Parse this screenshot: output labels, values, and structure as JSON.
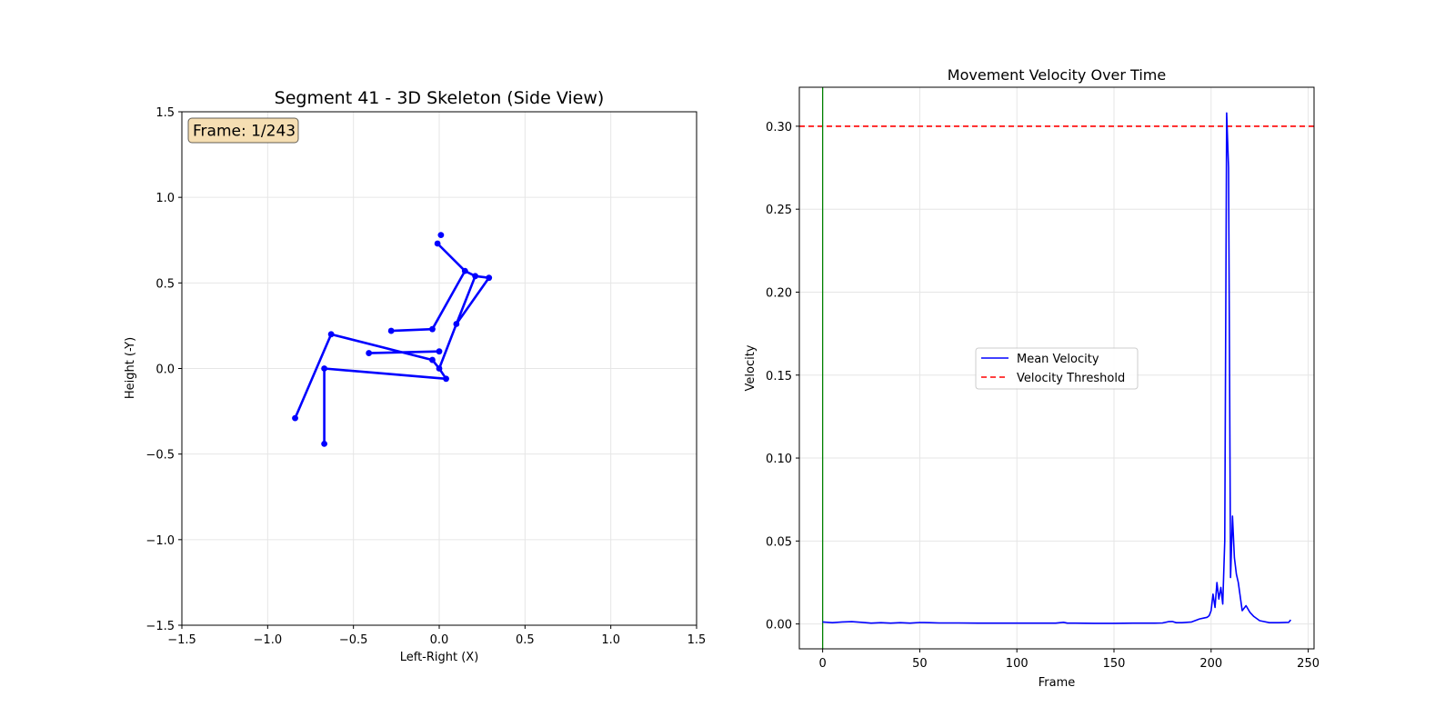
{
  "figure": {
    "left": {
      "title": "Segment 41 - 3D Skeleton (Side View)",
      "xlabel": "Left-Right (X)",
      "ylabel": "Height (-Y)",
      "frame_label": "Frame: 1/243"
    },
    "right": {
      "title": "Movement Velocity Over Time",
      "xlabel": "Frame",
      "ylabel": "Velocity"
    },
    "colors": {
      "skeleton": "#0000ff",
      "velocity": "#0000ff",
      "threshold": "#ff0000",
      "current_frame": "#008000",
      "frame_box_fill": "#f5deb3",
      "grid": "#e6e6e6"
    }
  },
  "chart_data": [
    {
      "type": "scatter",
      "title": "Segment 41 - 3D Skeleton (Side View)",
      "xlabel": "Left-Right (X)",
      "ylabel": "Height (-Y)",
      "xlim": [
        -1.5,
        1.5
      ],
      "ylim": [
        -1.5,
        1.5
      ],
      "xticks": [
        -1.5,
        -1.0,
        -0.5,
        0.0,
        0.5,
        1.0,
        1.5
      ],
      "yticks": [
        -1.5,
        -1.0,
        -0.5,
        0.0,
        0.5,
        1.0,
        1.5
      ],
      "xtick_labels": [
        "−1.5",
        "−1.0",
        "−0.5",
        "0.0",
        "0.5",
        "1.0",
        "1.5"
      ],
      "ytick_labels": [
        "−1.5",
        "−1.0",
        "−0.5",
        "0.0",
        "0.5",
        "1.0",
        "1.5"
      ],
      "grid": true,
      "annotation": "Frame: 1/243",
      "joints": [
        [
          -0.01,
          0.73
        ],
        [
          0.01,
          0.78
        ],
        [
          0.15,
          0.57
        ],
        [
          0.21,
          0.54
        ],
        [
          0.29,
          0.53
        ],
        [
          0.1,
          0.26
        ],
        [
          -0.04,
          0.23
        ],
        [
          -0.28,
          0.22
        ],
        [
          0.0,
          0.1
        ],
        [
          -0.41,
          0.09
        ],
        [
          -0.63,
          0.2
        ],
        [
          -0.84,
          -0.29
        ],
        [
          -0.04,
          0.05
        ],
        [
          0.0,
          0.0
        ],
        [
          -0.67,
          0.0
        ],
        [
          -0.67,
          -0.44
        ],
        [
          0.04,
          -0.06
        ]
      ],
      "bones": [
        [
          0,
          2
        ],
        [
          2,
          3
        ],
        [
          3,
          4
        ],
        [
          2,
          6
        ],
        [
          6,
          7
        ],
        [
          3,
          5
        ],
        [
          4,
          5
        ],
        [
          5,
          13
        ],
        [
          8,
          9
        ],
        [
          10,
          12
        ],
        [
          10,
          11
        ],
        [
          12,
          13
        ],
        [
          13,
          16
        ],
        [
          14,
          16
        ],
        [
          14,
          15
        ]
      ]
    },
    {
      "type": "line",
      "title": "Movement Velocity Over Time",
      "xlabel": "Frame",
      "ylabel": "Velocity",
      "xlim": [
        -12,
        253
      ],
      "ylim": [
        -0.015,
        0.3235
      ],
      "xticks": [
        0,
        50,
        100,
        150,
        200,
        250
      ],
      "yticks": [
        0.0,
        0.05,
        0.1,
        0.15,
        0.2,
        0.25,
        0.3
      ],
      "xtick_labels": [
        "0",
        "50",
        "100",
        "150",
        "200",
        "250"
      ],
      "ytick_labels": [
        "0.00",
        "0.05",
        "0.10",
        "0.15",
        "0.20",
        "0.25",
        "0.30"
      ],
      "grid": true,
      "legend_position": "center",
      "current_frame": 0,
      "threshold": {
        "name": "Velocity Threshold",
        "value": 0.3,
        "style": "dashed"
      },
      "series": [
        {
          "name": "Mean Velocity",
          "x": [
            0,
            5,
            10,
            15,
            20,
            25,
            30,
            35,
            40,
            45,
            50,
            55,
            60,
            70,
            80,
            90,
            100,
            110,
            120,
            124,
            126,
            130,
            140,
            150,
            160,
            170,
            175,
            178,
            180,
            182,
            185,
            190,
            194,
            196,
            198,
            199,
            200,
            201,
            202,
            203,
            204,
            205,
            206,
            207,
            208,
            209,
            210,
            211,
            212,
            213,
            214,
            216,
            218,
            220,
            222,
            225,
            230,
            235,
            240,
            241
          ],
          "y": [
            0.0012,
            0.0008,
            0.0012,
            0.0014,
            0.001,
            0.0005,
            0.0008,
            0.0005,
            0.0008,
            0.0005,
            0.0009,
            0.0008,
            0.0006,
            0.0006,
            0.0005,
            0.0005,
            0.0005,
            0.0005,
            0.0005,
            0.001,
            0.0005,
            0.0005,
            0.0004,
            0.0004,
            0.0005,
            0.0005,
            0.0006,
            0.0014,
            0.0015,
            0.0008,
            0.0008,
            0.0012,
            0.003,
            0.0035,
            0.004,
            0.005,
            0.008,
            0.018,
            0.01,
            0.025,
            0.015,
            0.022,
            0.012,
            0.05,
            0.308,
            0.275,
            0.028,
            0.065,
            0.04,
            0.03,
            0.025,
            0.008,
            0.011,
            0.007,
            0.0045,
            0.002,
            0.0008,
            0.0008,
            0.001,
            0.0025
          ]
        }
      ]
    }
  ]
}
